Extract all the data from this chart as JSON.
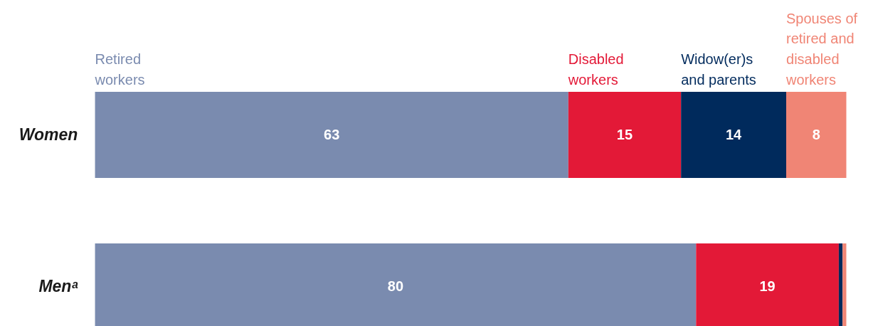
{
  "chart_data": {
    "type": "bar",
    "orientation": "horizontal",
    "stacked": true,
    "categories": [
      "Women",
      "Menᵃ"
    ],
    "series": [
      {
        "name": "Retired\nworkers",
        "color": "#7a8baf",
        "values": [
          63,
          80
        ],
        "value_labels": [
          "63",
          "80"
        ]
      },
      {
        "name": "Disabled\nworkers",
        "color": "#e31937",
        "values": [
          15,
          19
        ],
        "value_labels": [
          "15",
          "19"
        ]
      },
      {
        "name": "Widow(er)s\nand parents",
        "color": "#002a5c",
        "values": [
          14,
          0.5
        ],
        "value_labels": [
          "14",
          null
        ]
      },
      {
        "name": "Spouses of\nretired and\ndisabled\nworkers",
        "color": "#f08575",
        "values": [
          8,
          0.5
        ],
        "value_labels": [
          "8",
          null
        ]
      }
    ]
  }
}
